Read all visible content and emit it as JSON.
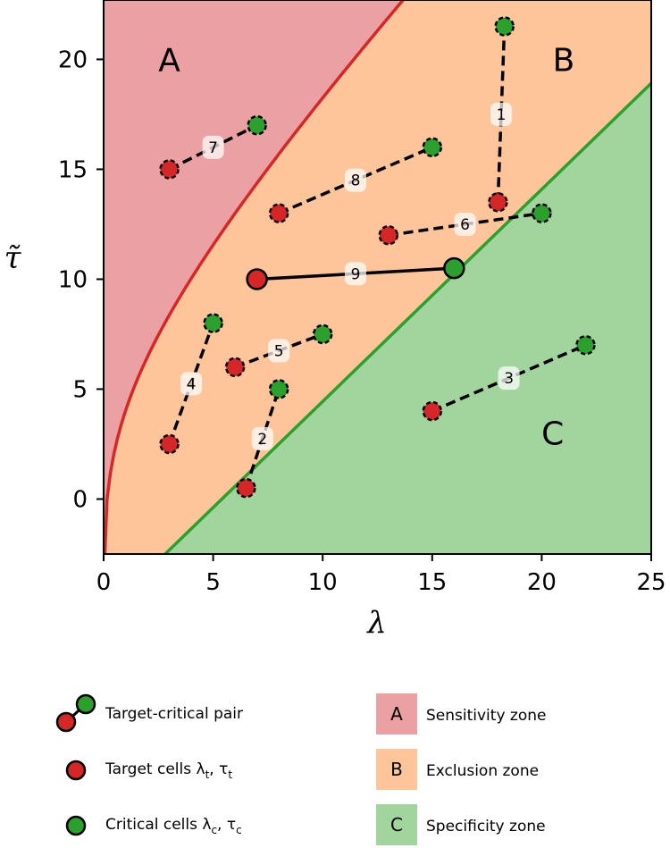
{
  "chart_data": {
    "type": "scatter",
    "xlabel": "λ",
    "ylabel": "τ̃",
    "xlim": [
      0,
      25
    ],
    "ylim": [
      -2.5,
      22.7
    ],
    "xticks": [
      0,
      5,
      10,
      15,
      20,
      25
    ],
    "yticks": [
      0,
      5,
      10,
      15,
      20
    ],
    "zones": [
      {
        "letter": "A",
        "name": "Sensitivity zone",
        "color": "#eba0a3",
        "label_x": 3,
        "label_y": 20
      },
      {
        "letter": "B",
        "name": "Exclusion zone",
        "color": "#fec59a",
        "label_x": 21,
        "label_y": 20
      },
      {
        "letter": "C",
        "name": "Specificity zone",
        "color": "#a2d59d",
        "label_x": 20.5,
        "label_y": 3
      }
    ],
    "boundary_colors": {
      "upper": "#d62728",
      "lower": "#2ca02c"
    },
    "target_color": "#d62728",
    "critical_color": "#2ca02c",
    "pairs": [
      {
        "label": "1",
        "target": [
          18,
          13.5
        ],
        "critical": [
          18.3,
          21.5
        ],
        "solid": false
      },
      {
        "label": "2",
        "target": [
          6.5,
          0.5
        ],
        "critical": [
          8,
          5
        ],
        "solid": false
      },
      {
        "label": "3",
        "target": [
          15,
          4
        ],
        "critical": [
          22,
          7
        ],
        "solid": false
      },
      {
        "label": "4",
        "target": [
          3,
          2.5
        ],
        "critical": [
          5,
          8
        ],
        "solid": false
      },
      {
        "label": "5",
        "target": [
          6,
          6
        ],
        "critical": [
          10,
          7.5
        ],
        "solid": false
      },
      {
        "label": "6",
        "target": [
          13,
          12
        ],
        "critical": [
          20,
          13
        ],
        "solid": false
      },
      {
        "label": "7",
        "target": [
          3,
          15
        ],
        "critical": [
          7,
          17
        ],
        "solid": false
      },
      {
        "label": "8",
        "target": [
          8,
          13
        ],
        "critical": [
          15,
          16
        ],
        "solid": false
      },
      {
        "label": "9",
        "target": [
          7,
          10
        ],
        "critical": [
          16,
          10.5
        ],
        "solid": true
      }
    ]
  },
  "legend": {
    "pair_label": "Target-critical pair",
    "target_label": "Target cells λ",
    "target_sub1": "t",
    "target_sep": ", τ",
    "target_sub2": "t",
    "critical_label": "Critical cells λ",
    "critical_sub1": "c",
    "critical_sep": ", τ",
    "critical_sub2": "c"
  }
}
